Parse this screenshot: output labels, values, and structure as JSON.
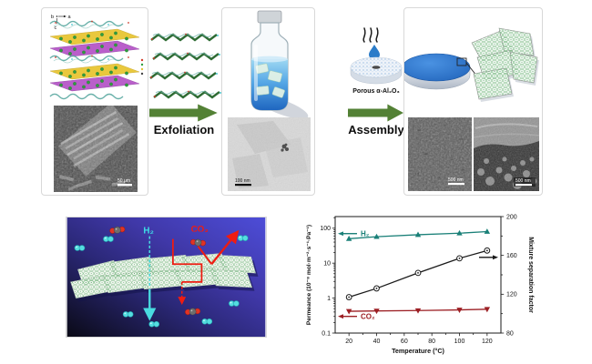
{
  "figure": {
    "exfoliation_label": "Exfoliation",
    "assembly_label": "Assembly",
    "support_label": "Porous α-Al₂O₃"
  },
  "colors": {
    "process_arrow": "#538135",
    "h2": "#3ddde6",
    "co2": "#ee1c12",
    "membrane_blue": "#2b6fc4"
  },
  "panel_raw": {
    "axis_b": "b",
    "axis_a": "a",
    "axis_c": "c",
    "sem_scale": "50 μm"
  },
  "panel_suspension": {
    "tem_scale": "100 nm"
  },
  "panel_membrane": {
    "sem_surface_scale": "500 nm",
    "sem_cross_scale": "500 nm"
  },
  "schematic": {
    "h2_label": "H₂",
    "co2_label": "CO₂"
  },
  "chart_data": {
    "type": "line",
    "xlabel": "Temperature (°C)",
    "ylabel_left": "Permeance (10⁻⁸ mol·m⁻²·s⁻¹·Pa⁻¹)",
    "ylabel_right": "Mixture separation factor",
    "x_range": [
      10,
      130
    ],
    "left_scale": "log",
    "left_range": [
      0.1,
      215
    ],
    "right_range": [
      80,
      200
    ],
    "xticks": [
      20,
      40,
      60,
      80,
      100,
      120
    ],
    "yticks_left": [
      0.1,
      1,
      10,
      100
    ],
    "yticks_right": [
      80,
      120,
      160,
      200
    ],
    "x": [
      20,
      40,
      70,
      100,
      120
    ],
    "series": [
      {
        "name": "H2 permeance",
        "axis": "left",
        "color": "#1a8078",
        "marker": "triangle-up",
        "values": [
          50,
          57,
          65,
          72,
          80
        ]
      },
      {
        "name": "H2/CO2 mixture separation factor",
        "axis": "right",
        "color": "#1a1a1a",
        "marker": "circle-open",
        "values": [
          117,
          126,
          142,
          157,
          165
        ]
      },
      {
        "name": "CO2 permeance",
        "axis": "left",
        "color": "#9c1f24",
        "marker": "triangle-down",
        "values": [
          0.42,
          0.43,
          0.44,
          0.46,
          0.48
        ]
      }
    ],
    "annotations": [
      {
        "label": "H₂",
        "color": "#1a8078",
        "axis": "left",
        "value": 70,
        "dir": "left"
      },
      {
        "label": "CO₂",
        "color": "#9c1f24",
        "axis": "left",
        "value": 0.3,
        "dir": "left"
      },
      {
        "label": "",
        "color": "#1a1a1a",
        "axis": "right",
        "value": 158,
        "dir": "right"
      }
    ],
    "legend_position": "none",
    "grid": false
  }
}
